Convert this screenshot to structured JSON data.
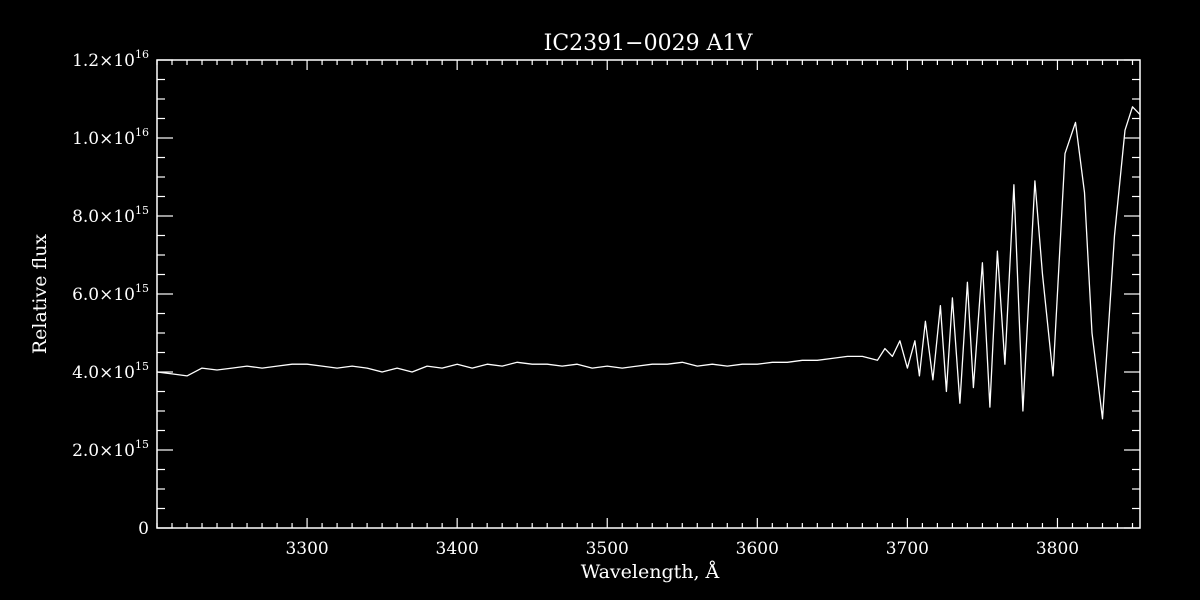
{
  "chart_data": {
    "type": "line",
    "title": "IC2391−0029   A1V",
    "xlabel": "Wavelength, Å",
    "ylabel": "Relative flux",
    "xlim": [
      3200,
      3855
    ],
    "ylim": [
      0,
      1.2e+16
    ],
    "xticks": [
      {
        "value": 3300,
        "label": "3300"
      },
      {
        "value": 3400,
        "label": "3400"
      },
      {
        "value": 3500,
        "label": "3500"
      },
      {
        "value": 3600,
        "label": "3600"
      },
      {
        "value": 3700,
        "label": "3700"
      },
      {
        "value": 3800,
        "label": "3800"
      }
    ],
    "x_minor_step": 10,
    "yticks": [
      {
        "value": 0,
        "mantissa": "0",
        "exponent": ""
      },
      {
        "value": 2000000000000000.0,
        "mantissa": "2.0×10",
        "exponent": "15"
      },
      {
        "value": 4000000000000000.0,
        "mantissa": "4.0×10",
        "exponent": "15"
      },
      {
        "value": 6000000000000000.0,
        "mantissa": "6.0×10",
        "exponent": "15"
      },
      {
        "value": 8000000000000000.0,
        "mantissa": "8.0×10",
        "exponent": "15"
      },
      {
        "value": 1e+16,
        "mantissa": "1.0×10",
        "exponent": "16"
      },
      {
        "value": 1.2e+16,
        "mantissa": "1.2×10",
        "exponent": "16"
      }
    ],
    "y_minor_step": 500000000000000.0,
    "grid": false,
    "legend": "none",
    "series": [
      {
        "color": "#ffffff",
        "x": [
          3200,
          3210,
          3220,
          3230,
          3240,
          3250,
          3260,
          3270,
          3280,
          3290,
          3300,
          3310,
          3320,
          3330,
          3340,
          3350,
          3360,
          3370,
          3380,
          3390,
          3400,
          3410,
          3420,
          3430,
          3440,
          3450,
          3460,
          3470,
          3480,
          3490,
          3500,
          3510,
          3520,
          3530,
          3540,
          3550,
          3560,
          3570,
          3580,
          3590,
          3600,
          3610,
          3620,
          3630,
          3640,
          3650,
          3660,
          3670,
          3680,
          3685,
          3690,
          3695,
          3700,
          3705,
          3708,
          3712,
          3717,
          3722,
          3726,
          3730,
          3735,
          3740,
          3744,
          3750,
          3755,
          3760,
          3765,
          3771,
          3777,
          3785,
          3790,
          3797,
          3805,
          3812,
          3818,
          3823,
          3830,
          3838,
          3845,
          3850,
          3855
        ],
        "y": [
          4000000000000000.0,
          3950000000000000.0,
          3900000000000000.0,
          4100000000000000.0,
          4050000000000000.0,
          4100000000000000.0,
          4150000000000000.0,
          4100000000000000.0,
          4150000000000000.0,
          4200000000000000.0,
          4200000000000000.0,
          4150000000000000.0,
          4100000000000000.0,
          4150000000000000.0,
          4100000000000000.0,
          4000000000000000.0,
          4100000000000000.0,
          4000000000000000.0,
          4150000000000000.0,
          4100000000000000.0,
          4200000000000000.0,
          4100000000000000.0,
          4200000000000000.0,
          4150000000000000.0,
          4250000000000000.0,
          4200000000000000.0,
          4200000000000000.0,
          4150000000000000.0,
          4200000000000000.0,
          4100000000000000.0,
          4150000000000000.0,
          4100000000000000.0,
          4150000000000000.0,
          4200000000000000.0,
          4200000000000000.0,
          4250000000000000.0,
          4150000000000000.0,
          4200000000000000.0,
          4150000000000000.0,
          4200000000000000.0,
          4200000000000000.0,
          4250000000000000.0,
          4250000000000000.0,
          4300000000000000.0,
          4300000000000000.0,
          4350000000000000.0,
          4400000000000000.0,
          4400000000000000.0,
          4300000000000000.0,
          4600000000000000.0,
          4400000000000000.0,
          4800000000000000.0,
          4100000000000000.0,
          4800000000000000.0,
          3900000000000000.0,
          5300000000000000.0,
          3800000000000000.0,
          5700000000000000.0,
          3500000000000000.0,
          5900000000000000.0,
          3200000000000000.0,
          6300000000000000.0,
          3600000000000000.0,
          6800000000000000.0,
          3100000000000000.0,
          7100000000000000.0,
          4200000000000000.0,
          8800000000000000.0,
          3000000000000000.0,
          8900000000000000.0,
          6500000000000000.0,
          3900000000000000.0,
          9600000000000000.0,
          1.04e+16,
          8600000000000000.0,
          5000000000000000.0,
          2800000000000000.0,
          7500000000000000.0,
          1.02e+16,
          1.08e+16,
          1.06e+16
        ]
      }
    ]
  }
}
